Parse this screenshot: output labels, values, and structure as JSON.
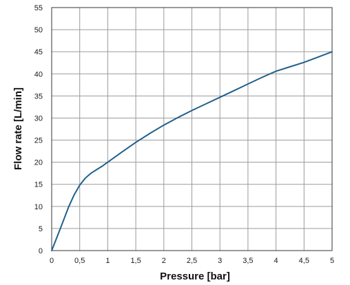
{
  "chart_data": {
    "type": "line",
    "title": "",
    "xlabel": "Pressure [bar]",
    "ylabel": "Flow rate [L/min]",
    "xlim": [
      0,
      5
    ],
    "ylim": [
      0,
      55
    ],
    "grid": true,
    "x_ticks": [
      "0",
      "0,5",
      "1",
      "1,5",
      "2",
      "2,5",
      "3",
      "3,5",
      "4",
      "4,5",
      "5"
    ],
    "y_ticks": [
      "0",
      "5",
      "10",
      "15",
      "20",
      "25",
      "30",
      "35",
      "40",
      "45",
      "50",
      "55"
    ],
    "line_color": "#1f5f8b",
    "series": [
      {
        "x": [
          0,
          0.1,
          0.2,
          0.3,
          0.4,
          0.5,
          0.6,
          0.7,
          0.8,
          0.9,
          1.0,
          1.25,
          1.5,
          1.75,
          2.0,
          2.25,
          2.5,
          2.75,
          3.0,
          3.25,
          3.5,
          3.75,
          4.0,
          4.25,
          4.5,
          4.75,
          5.0
        ],
        "y": [
          0,
          3.2,
          6.5,
          9.8,
          12.6,
          14.8,
          16.4,
          17.5,
          18.3,
          19.1,
          20.0,
          22.3,
          24.5,
          26.5,
          28.4,
          30.1,
          31.7,
          33.2,
          34.7,
          36.2,
          37.7,
          39.2,
          40.6,
          41.6,
          42.6,
          43.8,
          45.0
        ]
      }
    ]
  }
}
